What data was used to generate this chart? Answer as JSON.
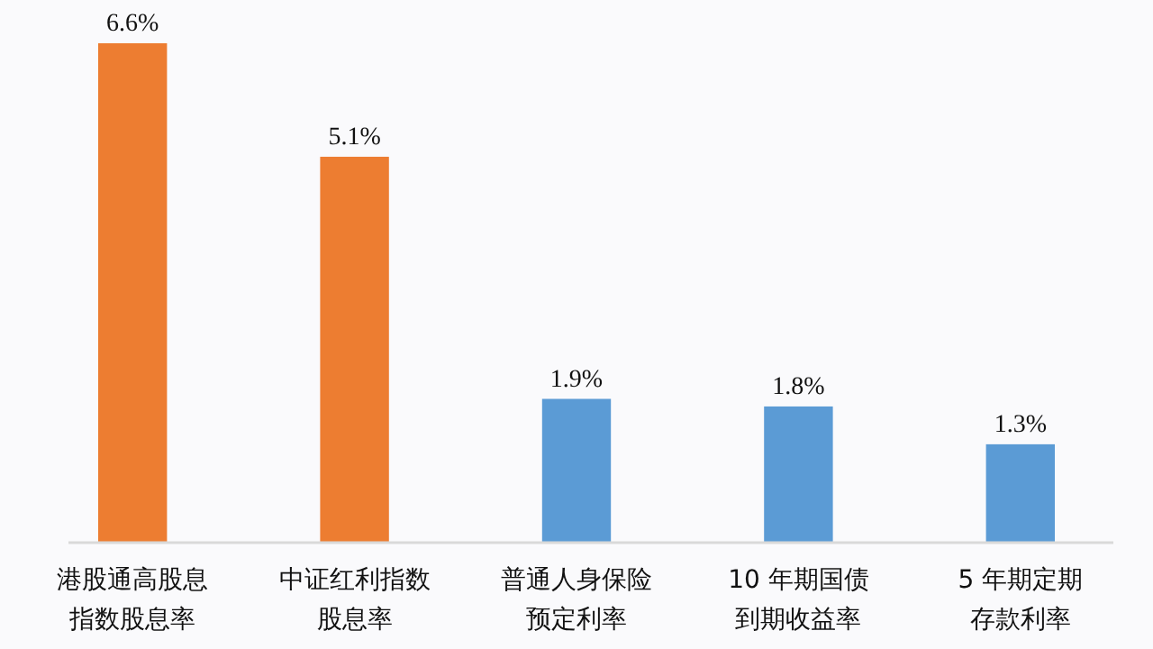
{
  "chart_data": {
    "type": "bar",
    "categories": [
      "港股通高股息指数股息率",
      "中证红利指数股息率",
      "普通人身保险预定利率",
      "10 年期国债到期收益率",
      "5 年期定期存款利率"
    ],
    "values": [
      6.6,
      5.1,
      1.9,
      1.8,
      1.3
    ],
    "colors": [
      "#ed7d31",
      "#ed7d31",
      "#5b9bd5",
      "#5b9bd5",
      "#5b9bd5"
    ],
    "value_labels": [
      "6.6%",
      "5.1%",
      "1.9%",
      "1.8%",
      "1.3%"
    ]
  }
}
